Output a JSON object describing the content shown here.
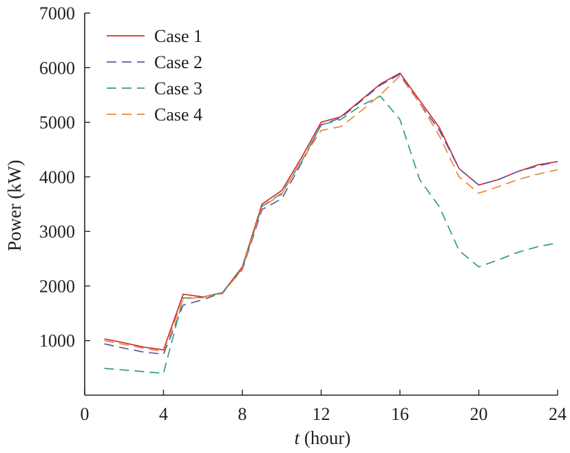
{
  "chart_data": {
    "type": "line",
    "xlabel_italic": "t",
    "xlabel_rest": " (hour)",
    "ylabel": "Power (kW)",
    "xlim": [
      0,
      24
    ],
    "ylim": [
      0,
      7000
    ],
    "xticks": [
      0,
      4,
      8,
      12,
      16,
      20,
      24
    ],
    "yticks": [
      1000,
      2000,
      3000,
      4000,
      5000,
      6000,
      7000
    ],
    "x": [
      1,
      2,
      3,
      4,
      5,
      6,
      7,
      8,
      9,
      10,
      11,
      12,
      13,
      14,
      15,
      16,
      17,
      18,
      19,
      20,
      21,
      22,
      23,
      24
    ],
    "legend_position": "top-left",
    "grid": false,
    "series": [
      {
        "name": "Case 1",
        "color": "#d62728",
        "dash": "solid",
        "values": [
          1030,
          960,
          880,
          830,
          1850,
          1800,
          1880,
          2350,
          3500,
          3750,
          4350,
          5000,
          5100,
          5400,
          5700,
          5900,
          5400,
          4900,
          4150,
          3850,
          3950,
          4100,
          4220,
          4280
        ]
      },
      {
        "name": "Case 2",
        "color": "#5b57a6",
        "dash": "dashed",
        "values": [
          940,
          860,
          790,
          750,
          1650,
          1750,
          1880,
          2300,
          3400,
          3600,
          4250,
          4950,
          5080,
          5380,
          5680,
          5880,
          5350,
          4850,
          4150,
          3850,
          3950,
          4100,
          4200,
          4280
        ]
      },
      {
        "name": "Case 3",
        "color": "#2e9e7a",
        "dash": "dashed",
        "values": [
          490,
          460,
          430,
          400,
          1780,
          1790,
          1880,
          2320,
          3460,
          3700,
          4280,
          4950,
          5050,
          5300,
          5480,
          5050,
          3950,
          3450,
          2650,
          2350,
          2480,
          2620,
          2720,
          2790
        ]
      },
      {
        "name": "Case 4",
        "color": "#e8863a",
        "dash": "dashed",
        "values": [
          1000,
          930,
          860,
          800,
          1760,
          1800,
          1860,
          2320,
          3450,
          3680,
          4300,
          4850,
          4920,
          5200,
          5500,
          5850,
          5350,
          4750,
          4000,
          3700,
          3820,
          3950,
          4050,
          4130
        ]
      }
    ]
  }
}
